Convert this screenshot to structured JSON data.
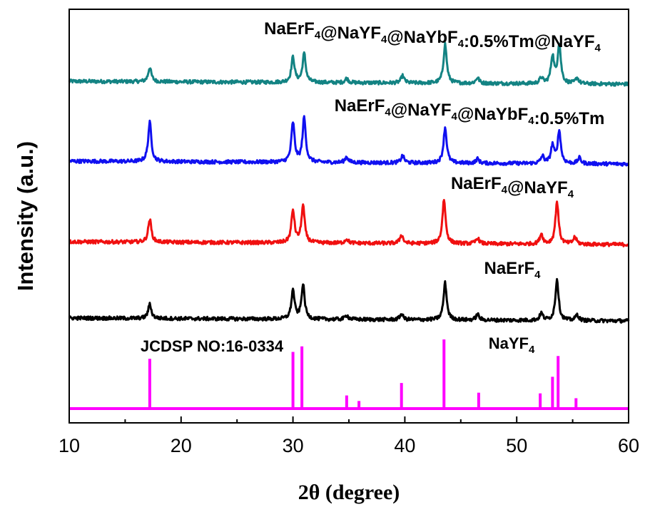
{
  "chart_data": {
    "type": "line",
    "xlabel": "2θ (degree)",
    "ylabel": "Intensity (a.u.)",
    "xlim": [
      10,
      60
    ],
    "xticks": [
      10,
      20,
      30,
      40,
      50,
      60
    ],
    "grid": false,
    "series": [
      {
        "name_parts": [
          [
            "NaErF",
            ""
          ],
          [
            "4",
            "sub"
          ],
          [
            "@NaYF",
            ""
          ],
          [
            "4",
            "sub"
          ],
          [
            "@NaYbF",
            ""
          ],
          [
            "4",
            "sub"
          ],
          [
            ":0.5%Tm@NaYF",
            ""
          ],
          [
            "4",
            "sub"
          ]
        ],
        "color": "#138383",
        "peaks": [
          [
            17.2,
            20
          ],
          [
            30.0,
            35
          ],
          [
            31.0,
            40
          ],
          [
            34.8,
            6
          ],
          [
            39.8,
            10
          ],
          [
            43.6,
            55
          ],
          [
            46.5,
            8
          ],
          [
            52.2,
            8
          ],
          [
            53.2,
            38
          ],
          [
            53.8,
            55
          ],
          [
            55.4,
            8
          ]
        ]
      },
      {
        "name_parts": [
          [
            "NaErF",
            ""
          ],
          [
            "4",
            "sub"
          ],
          [
            "@NaYF",
            ""
          ],
          [
            "4",
            "sub"
          ],
          [
            "@NaYbF",
            ""
          ],
          [
            "4",
            "sub"
          ],
          [
            ":0.5%Tm",
            ""
          ]
        ],
        "color": "#1010f0",
        "peaks": [
          [
            17.2,
            55
          ],
          [
            30.0,
            55
          ],
          [
            31.0,
            62
          ],
          [
            34.8,
            8
          ],
          [
            39.8,
            10
          ],
          [
            43.6,
            50
          ],
          [
            46.5,
            6
          ],
          [
            52.3,
            10
          ],
          [
            53.2,
            25
          ],
          [
            53.8,
            45
          ],
          [
            55.6,
            8
          ]
        ]
      },
      {
        "name_parts": [
          [
            "NaErF",
            ""
          ],
          [
            "4",
            "sub"
          ],
          [
            "@NaYF",
            ""
          ],
          [
            "4",
            "sub"
          ]
        ],
        "color": "#f01010",
        "peaks": [
          [
            17.2,
            32
          ],
          [
            30.0,
            45
          ],
          [
            30.9,
            52
          ],
          [
            34.8,
            6
          ],
          [
            39.7,
            12
          ],
          [
            43.5,
            62
          ],
          [
            46.5,
            8
          ],
          [
            52.2,
            14
          ],
          [
            53.6,
            60
          ],
          [
            55.2,
            10
          ]
        ]
      },
      {
        "name_parts": [
          [
            "NaErF",
            ""
          ],
          [
            "4",
            "sub"
          ]
        ],
        "color": "#000000",
        "peaks": [
          [
            17.2,
            20
          ],
          [
            30.0,
            40
          ],
          [
            30.9,
            48
          ],
          [
            34.8,
            6
          ],
          [
            39.7,
            8
          ],
          [
            43.6,
            52
          ],
          [
            46.5,
            8
          ],
          [
            52.2,
            10
          ],
          [
            53.6,
            58
          ],
          [
            55.4,
            8
          ]
        ]
      }
    ],
    "reference": {
      "name_parts": [
        [
          "NaYF",
          ""
        ],
        [
          "4",
          "sub"
        ]
      ],
      "card": "JCDSP NO:16-0334",
      "color": "#ff00ff",
      "lines": [
        [
          17.2,
          0.72
        ],
        [
          30.0,
          0.82
        ],
        [
          30.8,
          0.9
        ],
        [
          34.8,
          0.19
        ],
        [
          35.9,
          0.11
        ],
        [
          39.7,
          0.37
        ],
        [
          43.5,
          1.0
        ],
        [
          46.6,
          0.23
        ],
        [
          52.1,
          0.22
        ],
        [
          53.2,
          0.46
        ],
        [
          53.7,
          0.76
        ],
        [
          55.3,
          0.15
        ]
      ]
    }
  }
}
